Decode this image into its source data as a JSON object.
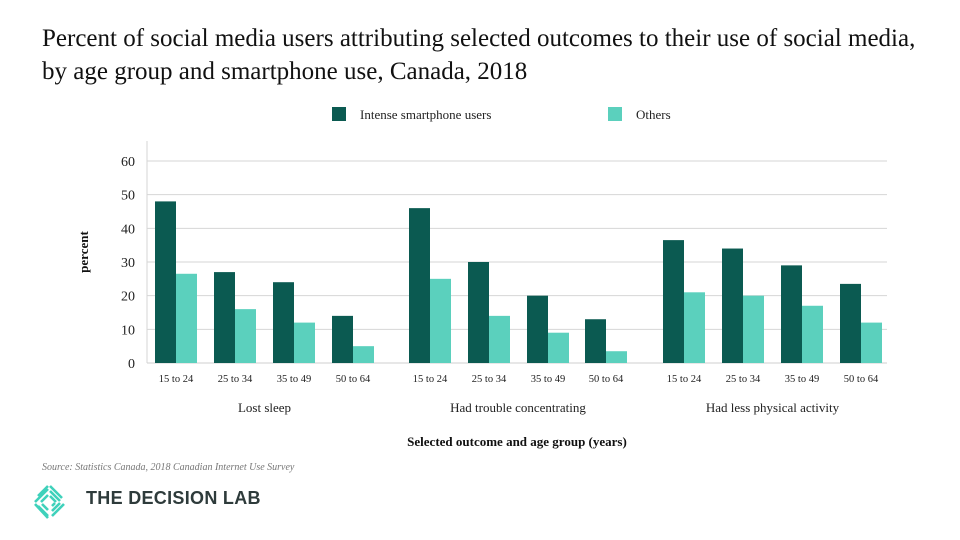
{
  "chart_data": {
    "type": "bar",
    "title": "Percent of social media users attributing selected outcomes to their use of social media, by age group and smartphone use, Canada, 2018",
    "xlabel": "Selected outcome and age group (years)",
    "ylabel": "percent",
    "ylim": [
      0,
      60
    ],
    "yticks": [
      0,
      10,
      20,
      30,
      40,
      50,
      60
    ],
    "grid": true,
    "legend_placement": "top-center",
    "groups": [
      "Lost sleep",
      "Had trouble concentrating",
      "Had less physical activity"
    ],
    "categories": [
      "15 to 24",
      "25 to 34",
      "35 to 49",
      "50 to 64"
    ],
    "series": [
      {
        "name": "Intense smartphone users",
        "color": "#0b5a51",
        "values": [
          [
            48,
            27,
            24,
            14
          ],
          [
            46,
            30,
            20,
            13
          ],
          [
            36.5,
            34,
            29,
            23.5
          ]
        ]
      },
      {
        "name": "Others",
        "color": "#5bd0bd",
        "values": [
          [
            26.5,
            16,
            12,
            5
          ],
          [
            25,
            14,
            9,
            3.5
          ],
          [
            21,
            20,
            17,
            12
          ]
        ]
      }
    ]
  },
  "source": "Source: Statistics Canada, 2018 Canadian Internet Use Survey",
  "brand": "THE DECISION LAB",
  "brand_color": "#3fd1bb"
}
